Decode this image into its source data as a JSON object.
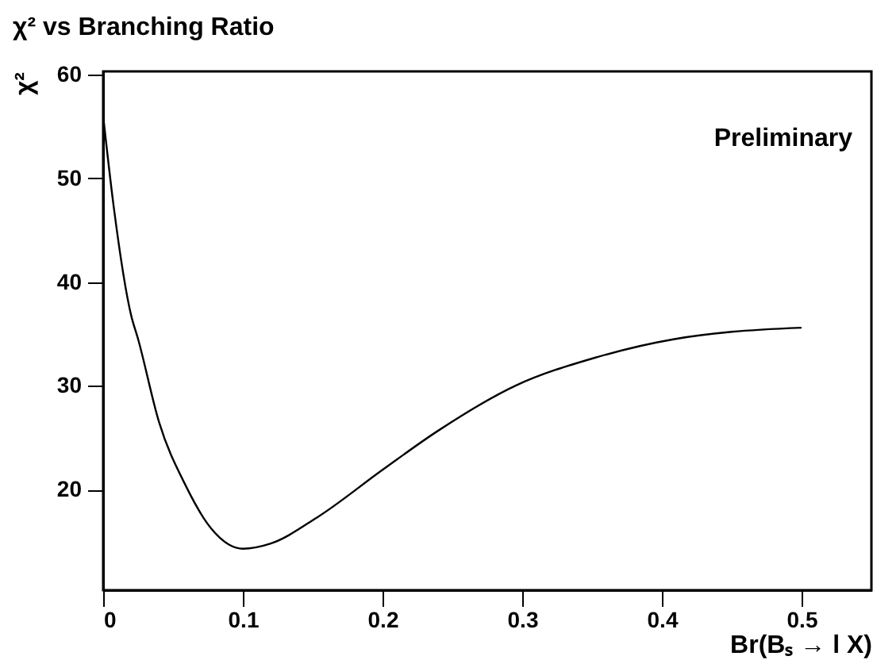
{
  "chart_data": {
    "type": "line",
    "title": "χ² vs Branching Ratio",
    "xlabel": "Br(Bₛ → l X)",
    "ylabel": "χ²",
    "annotations": [
      "Preliminary"
    ],
    "xlim": [
      0,
      0.55
    ],
    "xticks": [
      0,
      0.1,
      0.2,
      0.3,
      0.4,
      0.5
    ],
    "ylim": [
      10.3,
      60.3
    ],
    "yticks": [
      20,
      30,
      40,
      50,
      60
    ],
    "grid": false,
    "marker": "none",
    "line_style": "solid",
    "series": [
      {
        "color": "#000000",
        "x": [
          0,
          0.0076,
          0.02,
          0.025,
          0.04,
          0.059,
          0.077,
          0.09,
          0.1,
          0.12,
          0.153,
          0.2,
          0.239,
          0.295,
          0.352,
          0.409,
          0.45,
          0.5
        ],
        "values": [
          56,
          47.2,
          36.8,
          34.5,
          26.5,
          20.4,
          16.3,
          14.7,
          14.3,
          14.8,
          17.3,
          21.9,
          25.6,
          30.0,
          32.7,
          34.5,
          35.2,
          35.6
        ]
      }
    ]
  }
}
